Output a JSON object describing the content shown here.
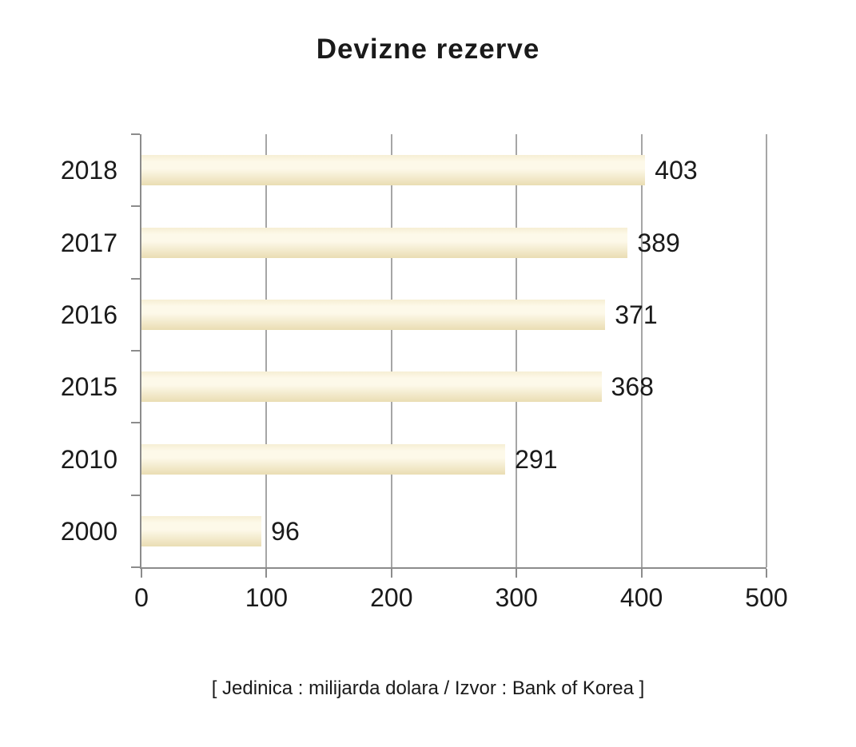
{
  "chart_data": {
    "type": "bar",
    "orientation": "horizontal",
    "title": "Devizne rezerve",
    "categories": [
      "2018",
      "2017",
      "2016",
      "2015",
      "2010",
      "2000"
    ],
    "values": [
      403,
      389,
      371,
      368,
      291,
      96
    ],
    "xlim": [
      0,
      500
    ],
    "x_ticks": [
      "0",
      "100",
      "200",
      "300",
      "400",
      "500"
    ],
    "grid": "vertical-gridlines-on",
    "legend": "none",
    "data_labels": true,
    "footnote": "[ Jedinica : milijarda dolara / Izvor : Bank of Korea ]",
    "colors": {
      "bar_top": "#f6eed4",
      "bar_light": "#fdf9e9",
      "bar_bottom": "#eaddb3",
      "axis": "#8c8c8c",
      "gridline": "#a6a6a6",
      "text": "#1a1a1a",
      "background": "#ffffff"
    }
  }
}
